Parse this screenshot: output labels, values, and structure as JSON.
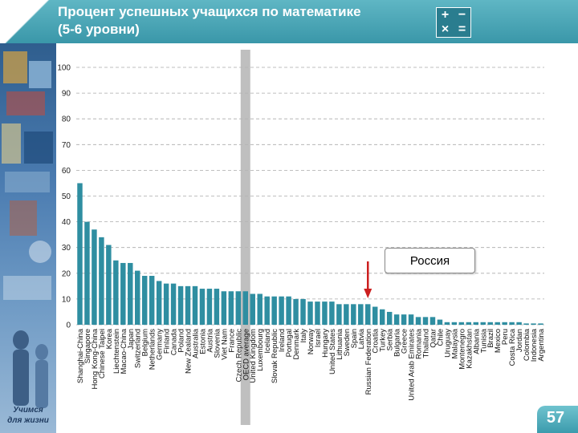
{
  "header": {
    "title": "Процент успешных учащихся по математике\n (5-6 уровни)"
  },
  "icon": {
    "name": "math-operations-icon",
    "symbols": [
      "+",
      "−",
      "×",
      "="
    ]
  },
  "sidebar": {
    "slogan": "Учимся\nдля жизни"
  },
  "callout": {
    "label": "Россия"
  },
  "page": {
    "number": "57"
  },
  "colors": {
    "bar": "#2f8ea1",
    "grid": "#aaaaaa",
    "highlight_band": "#b4b4b4",
    "arrow": "#cc1f1f"
  },
  "chart_data": {
    "type": "bar",
    "ylim": [
      0,
      100
    ],
    "yticks": [
      0,
      10,
      20,
      30,
      40,
      50,
      60,
      70,
      80,
      90,
      100
    ],
    "grid": true,
    "highlight_category": "OECD average",
    "arrow_category": "Russian Federation",
    "categories": [
      "Shanghai-China",
      "Singapore",
      "Hong Kong-China",
      "Chinese Taipei",
      "Korea",
      "Liechtenstein",
      "Macao-China",
      "Japan",
      "Switzerland",
      "Belgium",
      "Netherlands",
      "Germany",
      "Finland",
      "Canada",
      "Poland",
      "New Zealand",
      "Australia",
      "Estonia",
      "Austria",
      "Slovenia",
      "Viet Nam",
      "France",
      "Czech Republic",
      "OECD average",
      "United Kingdom",
      "Luxembourg",
      "Iceland",
      "Slovak Republic",
      "Ireland",
      "Portugal",
      "Denmark",
      "Italy",
      "Norway",
      "Israel",
      "Hungary",
      "United States",
      "Lithuania",
      "Sweden",
      "Spain",
      "Latvia",
      "Russian Federation",
      "Croatia",
      "Turkey",
      "Serbia",
      "Bulgaria",
      "Greece",
      "United Arab Emirates",
      "Romania",
      "Thailand",
      "Qatar",
      "Chile",
      "Uruguay",
      "Malaysia",
      "Montenegro",
      "Kazakhstan",
      "Albania",
      "Tunisia",
      "Brazil",
      "Mexico",
      "Peru",
      "Costa Rica",
      "Jordan",
      "Colombia",
      "Indonesia",
      "Argentina"
    ],
    "values": [
      55,
      40,
      37,
      34,
      31,
      25,
      24,
      24,
      21,
      19,
      19,
      17,
      16,
      16,
      15,
      15,
      15,
      14,
      14,
      14,
      13,
      13,
      13,
      13,
      12,
      12,
      11,
      11,
      11,
      11,
      10,
      10,
      9,
      9,
      9,
      9,
      8,
      8,
      8,
      8,
      8,
      7,
      6,
      5,
      4,
      4,
      4,
      3,
      3,
      3,
      2,
      1,
      1,
      1,
      1,
      1,
      1,
      1,
      1,
      1,
      1,
      1,
      0.5,
      0.5,
      0.5
    ]
  }
}
